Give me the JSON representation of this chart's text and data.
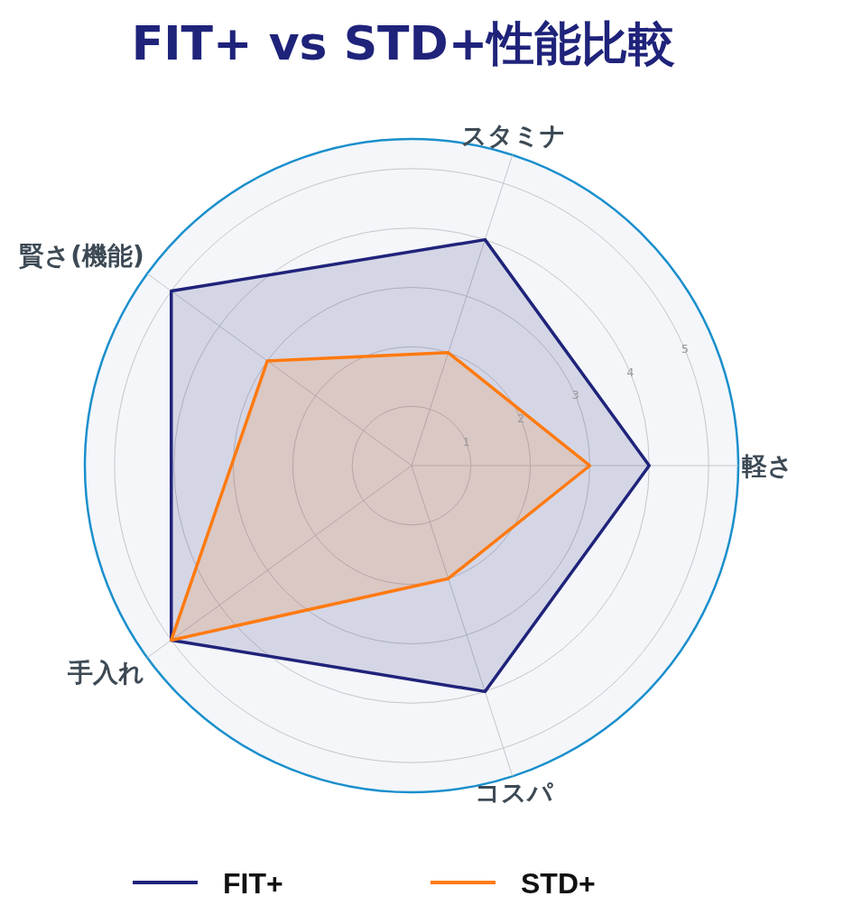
{
  "chart_data": {
    "type": "radar",
    "title": "FIT+ vs STD+性能比較",
    "categories": [
      "スタミナ",
      "軽さ",
      "コスパ",
      "手入れ",
      "賢さ(機能)"
    ],
    "series": [
      {
        "name": "FIT+",
        "color": "#1f237a",
        "values": [
          4,
          4,
          4,
          5,
          5
        ]
      },
      {
        "name": "STD+",
        "color": "#ff7a10",
        "values": [
          2,
          3,
          2,
          5,
          3
        ]
      }
    ],
    "ylim": [
      0,
      5.5
    ],
    "yticks": [
      1,
      2,
      3,
      4,
      5
    ],
    "grid": true,
    "legend": "bottom"
  }
}
